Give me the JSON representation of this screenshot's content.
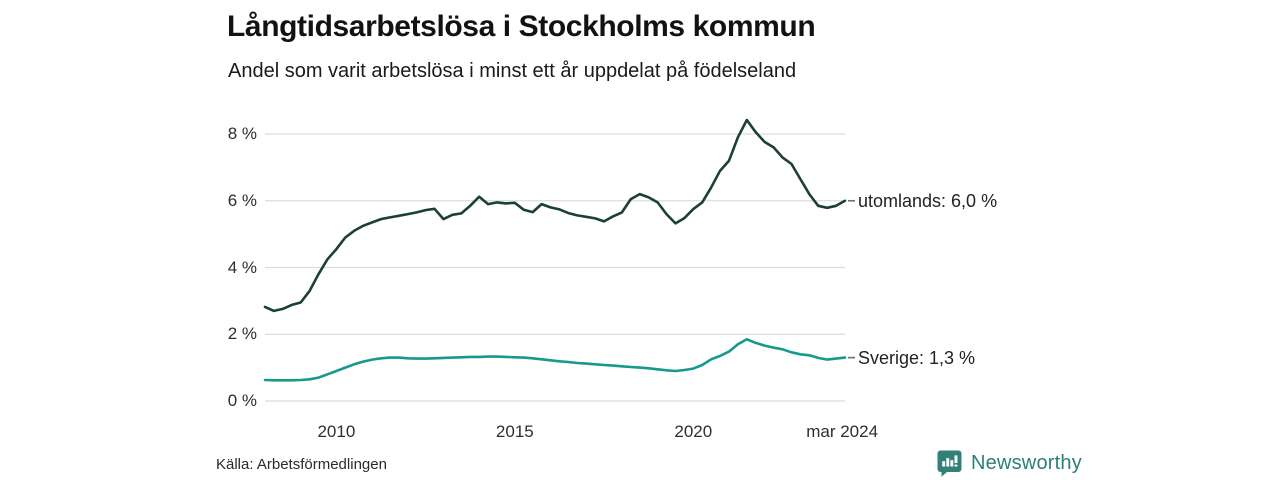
{
  "header": {
    "title": "Långtidsarbetslösa i Stockholms kommun",
    "subtitle": "Andel som varit arbetslösa i minst ett år uppdelat på födelseland"
  },
  "footer": {
    "source": "Källa: Arbetsförmedlingen",
    "brand": {
      "name": "Newsworthy",
      "icon": "newsworthy-speech-bubble-chart-icon",
      "color": "#2c7f78",
      "icon_color": "#338078"
    }
  },
  "colors": {
    "grid": "#dcdcdc",
    "leader_dash": "#6e6e6e",
    "text": "#222222"
  },
  "chart_data": {
    "type": "line",
    "title": "Långtidsarbetslösa i Stockholms kommun",
    "subtitle": "Andel som varit arbetslösa i minst ett år uppdelat på födelseland",
    "xlabel": "",
    "ylabel": "",
    "grid": "horizontal",
    "legend_position": "end-of-line-labels",
    "xlim": [
      2008,
      2024.25
    ],
    "ylim": [
      0,
      8
    ],
    "yticks": [
      {
        "value": 8,
        "label": "8 %"
      },
      {
        "value": 6,
        "label": "6 %"
      },
      {
        "value": 4,
        "label": "4 %"
      },
      {
        "value": 2,
        "label": "2 %"
      },
      {
        "value": 0,
        "label": "0 %"
      }
    ],
    "xticks": [
      {
        "value": 2010,
        "label": "2010"
      },
      {
        "value": 2015,
        "label": "2015"
      },
      {
        "value": 2020,
        "label": "2020"
      },
      {
        "value": 2024.17,
        "label": "mar 2024"
      }
    ],
    "x": [
      2008.0,
      2008.25,
      2008.5,
      2008.75,
      2009.0,
      2009.25,
      2009.5,
      2009.75,
      2010.0,
      2010.25,
      2010.5,
      2010.75,
      2011.0,
      2011.25,
      2011.5,
      2011.75,
      2012.0,
      2012.25,
      2012.5,
      2012.75,
      2013.0,
      2013.25,
      2013.5,
      2013.75,
      2014.0,
      2014.25,
      2014.5,
      2014.75,
      2015.0,
      2015.25,
      2015.5,
      2015.75,
      2016.0,
      2016.25,
      2016.5,
      2016.75,
      2017.0,
      2017.25,
      2017.5,
      2017.75,
      2018.0,
      2018.25,
      2018.5,
      2018.75,
      2019.0,
      2019.25,
      2019.5,
      2019.75,
      2020.0,
      2020.25,
      2020.5,
      2020.75,
      2021.0,
      2021.25,
      2021.5,
      2021.75,
      2022.0,
      2022.25,
      2022.5,
      2022.75,
      2023.0,
      2023.25,
      2023.5,
      2023.75,
      2024.0,
      2024.25
    ],
    "series": [
      {
        "name": "utomlands",
        "end_label": "utomlands: 6,0 %",
        "current_value": "6,0 %",
        "color": "#1c3f38",
        "values": [
          2.82,
          2.7,
          2.76,
          2.88,
          2.95,
          3.3,
          3.8,
          4.25,
          4.55,
          4.9,
          5.1,
          5.25,
          5.35,
          5.45,
          5.5,
          5.55,
          5.6,
          5.65,
          5.72,
          5.76,
          5.45,
          5.58,
          5.62,
          5.85,
          6.12,
          5.9,
          5.95,
          5.92,
          5.94,
          5.73,
          5.66,
          5.9,
          5.8,
          5.74,
          5.63,
          5.56,
          5.52,
          5.47,
          5.38,
          5.53,
          5.65,
          6.05,
          6.2,
          6.1,
          5.95,
          5.6,
          5.32,
          5.48,
          5.75,
          5.95,
          6.4,
          6.9,
          7.2,
          7.9,
          8.42,
          8.05,
          7.76,
          7.6,
          7.3,
          7.1,
          6.65,
          6.2,
          5.85,
          5.79,
          5.85,
          6.0
        ]
      },
      {
        "name": "Sverige",
        "end_label": "Sverige: 1,3 %",
        "current_value": "1,3 %",
        "color": "#169a8b",
        "values": [
          0.63,
          0.62,
          0.62,
          0.62,
          0.63,
          0.65,
          0.7,
          0.8,
          0.9,
          1.0,
          1.1,
          1.18,
          1.24,
          1.28,
          1.3,
          1.3,
          1.28,
          1.27,
          1.27,
          1.28,
          1.29,
          1.3,
          1.31,
          1.32,
          1.32,
          1.33,
          1.33,
          1.32,
          1.31,
          1.3,
          1.28,
          1.25,
          1.22,
          1.19,
          1.17,
          1.14,
          1.12,
          1.1,
          1.08,
          1.06,
          1.04,
          1.02,
          1.0,
          0.98,
          0.95,
          0.92,
          0.9,
          0.93,
          0.97,
          1.08,
          1.25,
          1.35,
          1.48,
          1.7,
          1.85,
          1.74,
          1.66,
          1.6,
          1.55,
          1.46,
          1.4,
          1.37,
          1.29,
          1.24,
          1.27,
          1.3
        ]
      }
    ]
  }
}
